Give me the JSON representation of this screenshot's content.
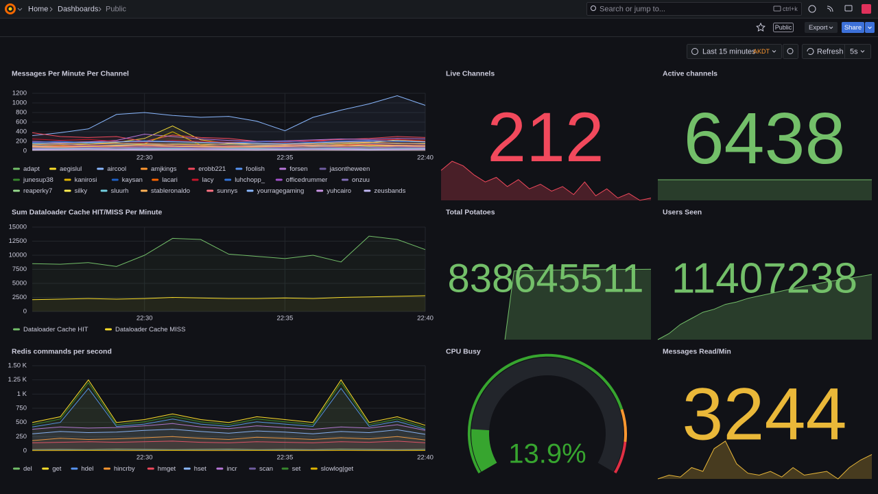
{
  "header": {
    "breadcrumbs": [
      "Home",
      "Dashboards",
      "Public"
    ],
    "search_placeholder": "Search or jump to...",
    "search_shortcut": "ctrl+k"
  },
  "toolbar": {
    "badge": "Public",
    "export": "Export",
    "share": "Share"
  },
  "time_controls": {
    "range": "Last 15 minutes",
    "timezone": "AKDT",
    "refresh": "Refresh",
    "interval": "5s"
  },
  "panels": [
    {
      "type": "timeseries",
      "title": "Messages Per Minute Per Channel",
      "x": [
        "22:26",
        "22:27",
        "22:28",
        "22:29",
        "22:30",
        "22:31",
        "22:32",
        "22:33",
        "22:34",
        "22:35",
        "22:36",
        "22:37",
        "22:38",
        "22:39",
        "22:40"
      ],
      "xticks": [
        "22:30",
        "22:35",
        "22:40"
      ],
      "ylim": [
        0,
        1200
      ],
      "yticks": [
        0,
        200,
        400,
        600,
        800,
        1000,
        1200
      ],
      "series": [
        {
          "name": "adapt",
          "color": "#73bf69",
          "values": [
            150,
            140,
            160,
            170,
            120,
            150,
            160,
            130,
            140,
            150,
            130,
            160,
            170,
            150,
            160
          ]
        },
        {
          "name": "aegislul",
          "color": "#fade2a",
          "values": [
            100,
            120,
            140,
            180,
            260,
            520,
            230,
            160,
            130,
            110,
            120,
            140,
            170,
            230,
            200
          ]
        },
        {
          "name": "aircool",
          "color": "#8ab8ff",
          "values": [
            320,
            380,
            460,
            760,
            800,
            740,
            700,
            720,
            620,
            420,
            700,
            850,
            980,
            1150,
            950
          ]
        },
        {
          "name": "amjkings",
          "color": "#ff9830",
          "values": [
            60,
            80,
            70,
            90,
            80,
            100,
            90,
            80,
            70,
            90,
            80,
            100,
            110,
            90,
            100
          ]
        },
        {
          "name": "erobb221",
          "color": "#f2495c",
          "values": [
            380,
            300,
            280,
            300,
            200,
            330,
            280,
            260,
            200,
            180,
            210,
            240,
            260,
            300,
            280
          ]
        },
        {
          "name": "foolish",
          "color": "#5794f2",
          "values": [
            40,
            50,
            45,
            60,
            55,
            50,
            45,
            60,
            50,
            40,
            55,
            60,
            50,
            45,
            50
          ]
        },
        {
          "name": "forsen",
          "color": "#b877d9",
          "values": [
            200,
            180,
            190,
            220,
            350,
            300,
            250,
            220,
            200,
            210,
            230,
            250,
            240,
            260,
            250
          ]
        },
        {
          "name": "jasontheween",
          "color": "#705da0",
          "values": [
            120,
            140,
            110,
            130,
            150,
            140,
            120,
            110,
            130,
            140,
            120,
            130,
            150,
            160,
            140
          ]
        },
        {
          "name": "junesup38",
          "color": "#37872d",
          "values": [
            30,
            40,
            35,
            30,
            40,
            45,
            35,
            30,
            40,
            35,
            30,
            40,
            45,
            35,
            40
          ]
        },
        {
          "name": "kanirosi",
          "color": "#e0b400",
          "values": [
            80,
            70,
            90,
            100,
            150,
            400,
            120,
            90,
            80,
            70,
            90,
            100,
            110,
            120,
            100
          ]
        },
        {
          "name": "kaysan",
          "color": "#1f60c4",
          "values": [
            60,
            70,
            60,
            80,
            70,
            60,
            70,
            80,
            60,
            70,
            60,
            80,
            90,
            70,
            80
          ]
        },
        {
          "name": "lacari",
          "color": "#fa6400",
          "values": [
            90,
            110,
            100,
            120,
            110,
            100,
            90,
            100,
            110,
            120,
            100,
            130,
            140,
            120,
            110
          ]
        },
        {
          "name": "lacy",
          "color": "#c4162a",
          "values": [
            250,
            220,
            240,
            200,
            180,
            220,
            200,
            180,
            190,
            200,
            210,
            190,
            220,
            240,
            210
          ]
        },
        {
          "name": "luhchopp_",
          "color": "#3274d9",
          "values": [
            180,
            200,
            170,
            190,
            210,
            200,
            180,
            170,
            190,
            200,
            180,
            210,
            220,
            200,
            190
          ]
        },
        {
          "name": "officedrummer",
          "color": "#a352cc",
          "values": [
            70,
            60,
            80,
            70,
            90,
            80,
            70,
            60,
            70,
            80,
            90,
            80,
            70,
            90,
            80
          ]
        },
        {
          "name": "onzuu",
          "color": "#806eb7",
          "values": [
            50,
            60,
            55,
            65,
            60,
            55,
            50,
            60,
            65,
            55,
            50,
            60,
            65,
            55,
            60
          ]
        },
        {
          "name": "reaperky7",
          "color": "#96d98d",
          "values": [
            110,
            90,
            100,
            120,
            130,
            110,
            100,
            90,
            110,
            120,
            100,
            110,
            130,
            120,
            110
          ]
        },
        {
          "name": "silky",
          "color": "#ffee52",
          "values": [
            90,
            80,
            100,
            110,
            120,
            100,
            90,
            80,
            90,
            100,
            110,
            120,
            100,
            110,
            100
          ]
        },
        {
          "name": "sluurh",
          "color": "#73d0e0",
          "values": [
            40,
            45,
            50,
            40,
            45,
            50,
            40,
            45,
            50,
            40,
            45,
            50,
            40,
            45,
            50
          ]
        },
        {
          "name": "stableronaldo",
          "color": "#ffb357",
          "values": [
            130,
            150,
            140,
            160,
            150,
            140,
            130,
            150,
            160,
            140,
            150,
            170,
            180,
            160,
            150
          ]
        },
        {
          "name": "sunnys",
          "color": "#ff7383",
          "values": [
            100,
            90,
            110,
            100,
            120,
            110,
            100,
            90,
            100,
            110,
            120,
            110,
            130,
            120,
            110
          ]
        },
        {
          "name": "yourragegaming",
          "color": "#8ab8ff",
          "values": [
            160,
            170,
            180,
            190,
            200,
            190,
            180,
            170,
            160,
            150,
            170,
            190,
            200,
            210,
            190
          ]
        },
        {
          "name": "yuhcairo",
          "color": "#ca95e5",
          "values": [
            30,
            35,
            40,
            35,
            30,
            35,
            40,
            35,
            30,
            35,
            40,
            35,
            30,
            35,
            40
          ]
        },
        {
          "name": "zeusbands",
          "color": "#c0b6f2",
          "values": [
            20,
            25,
            30,
            25,
            20,
            25,
            30,
            25,
            20,
            25,
            30,
            25,
            20,
            25,
            30
          ]
        }
      ]
    },
    {
      "type": "stat",
      "title": "Live Channels",
      "value": 212,
      "color": "#f2495c",
      "sparkline": [
        236,
        244,
        240,
        232,
        226,
        230,
        222,
        228,
        220,
        224,
        218,
        222,
        215,
        226,
        214,
        220,
        212,
        216,
        210,
        212
      ]
    },
    {
      "type": "stat",
      "title": "Active channels",
      "value": 6438,
      "color": "#73bf69",
      "sparkline": [
        6438,
        6438,
        6438,
        6438,
        6438,
        6438,
        6438,
        6438,
        6438,
        6438
      ]
    },
    {
      "type": "timeseries",
      "title": "Sum Dataloader Cache HIT/MISS Per Minute",
      "x": [
        "22:26",
        "22:27",
        "22:28",
        "22:29",
        "22:30",
        "22:31",
        "22:32",
        "22:33",
        "22:34",
        "22:35",
        "22:36",
        "22:37",
        "22:38",
        "22:39",
        "22:40"
      ],
      "xticks": [
        "22:30",
        "22:35",
        "22:40"
      ],
      "ylim": [
        0,
        15000
      ],
      "yticks": [
        0,
        2500,
        5000,
        7500,
        10000,
        12500,
        15000
      ],
      "series": [
        {
          "name": "Dataloader Cache HIT",
          "color": "#73bf69",
          "values": [
            8500,
            8400,
            8700,
            8000,
            10000,
            13000,
            12800,
            10200,
            9800,
            9400,
            10000,
            8800,
            13400,
            12800,
            11000
          ]
        },
        {
          "name": "Dataloader Cache MISS",
          "color": "#fade2a",
          "values": [
            2100,
            2200,
            2300,
            2200,
            2300,
            2500,
            2400,
            2300,
            2300,
            2400,
            2300,
            2500,
            2600,
            2700,
            2800
          ]
        }
      ]
    },
    {
      "type": "stat",
      "title": "Total Potatoes",
      "value": 838645511,
      "color": "#73bf69",
      "sparkline": [
        null,
        null,
        null,
        null,
        null,
        null,
        null,
        838000000,
        838630000,
        838632000,
        838634000,
        838636000,
        838637000,
        838638000,
        838639000,
        838640000,
        838641000,
        838642000,
        838643000,
        838643500,
        838644000,
        838644500,
        838645000,
        838645511
      ]
    },
    {
      "type": "stat",
      "title": "Users Seen",
      "value": 11407238,
      "color": "#73bf69",
      "sparkline": [
        11300000,
        11310000,
        11325000,
        11335000,
        11345000,
        11350000,
        11358000,
        11362000,
        11368000,
        11372000,
        11376000,
        11380000,
        11384000,
        11388000,
        11391000,
        11395000,
        11398000,
        11401000,
        11404000,
        11407238
      ]
    },
    {
      "type": "timeseries",
      "title": "Redis commands per second",
      "x": [
        "22:26",
        "22:27",
        "22:28",
        "22:29",
        "22:30",
        "22:31",
        "22:32",
        "22:33",
        "22:34",
        "22:35",
        "22:36",
        "22:37",
        "22:38",
        "22:39",
        "22:40"
      ],
      "xticks": [
        "22:30",
        "22:35",
        "22:40"
      ],
      "ylim": [
        0,
        1500
      ],
      "yticks": [
        0,
        250,
        500,
        750,
        {
          "value": 1000,
          "label": "1 K"
        },
        {
          "value": 1250,
          "label": "1.25 K"
        },
        {
          "value": 1500,
          "label": "1.50 K"
        }
      ],
      "series": [
        {
          "name": "del",
          "color": "#73bf69",
          "values": [
            20,
            25,
            20,
            30,
            25,
            20,
            25,
            30,
            20,
            25,
            20,
            30,
            25,
            20,
            25
          ]
        },
        {
          "name": "get",
          "color": "#fade2a",
          "values": [
            500,
            600,
            1250,
            500,
            550,
            650,
            550,
            500,
            600,
            550,
            500,
            1250,
            500,
            600,
            450
          ]
        },
        {
          "name": "hdel",
          "color": "#5794f2",
          "values": [
            420,
            500,
            1100,
            430,
            470,
            560,
            470,
            430,
            510,
            470,
            430,
            1100,
            430,
            520,
            380
          ]
        },
        {
          "name": "hincrby",
          "color": "#ff9830",
          "values": [
            180,
            220,
            200,
            210,
            230,
            250,
            220,
            200,
            240,
            220,
            200,
            230,
            210,
            250,
            190
          ]
        },
        {
          "name": "hmget",
          "color": "#f2495c",
          "values": [
            140,
            150,
            160,
            150,
            160,
            170,
            150,
            140,
            160,
            150,
            140,
            160,
            150,
            170,
            140
          ]
        },
        {
          "name": "hset",
          "color": "#8ab8ff",
          "values": [
            300,
            340,
            320,
            330,
            360,
            380,
            340,
            310,
            350,
            330,
            300,
            340,
            320,
            370,
            290
          ]
        },
        {
          "name": "incr",
          "color": "#b877d9",
          "values": [
            380,
            420,
            400,
            410,
            440,
            480,
            420,
            390,
            440,
            410,
            380,
            420,
            400,
            460,
            360
          ]
        },
        {
          "name": "scan",
          "color": "#705da0",
          "values": [
            10,
            12,
            10,
            11,
            12,
            10,
            11,
            12,
            10,
            11,
            12,
            10,
            11,
            12,
            10
          ]
        },
        {
          "name": "set",
          "color": "#37872d",
          "values": [
            460,
            560,
            1200,
            460,
            510,
            610,
            510,
            460,
            560,
            510,
            460,
            1200,
            460,
            560,
            410
          ]
        },
        {
          "name": "slowlog|get",
          "color": "#e0b400",
          "values": [
            5,
            5,
            6,
            5,
            5,
            6,
            5,
            5,
            6,
            5,
            5,
            6,
            5,
            5,
            6
          ]
        }
      ]
    },
    {
      "type": "gauge",
      "title": "CPU Busy",
      "value": 13.9,
      "value_label": "13.9%",
      "range": [
        0,
        100
      ],
      "color": "#37a52f"
    },
    {
      "type": "stat",
      "title": "Messages Read/Min",
      "value": 3244,
      "color": "#eab839",
      "sparkline": [
        2600,
        2700,
        2650,
        2900,
        2800,
        3400,
        3600,
        3000,
        2750,
        2700,
        2800,
        2650,
        2900,
        2700,
        2750,
        2800,
        2600,
        2900,
        3100,
        3244
      ]
    }
  ]
}
